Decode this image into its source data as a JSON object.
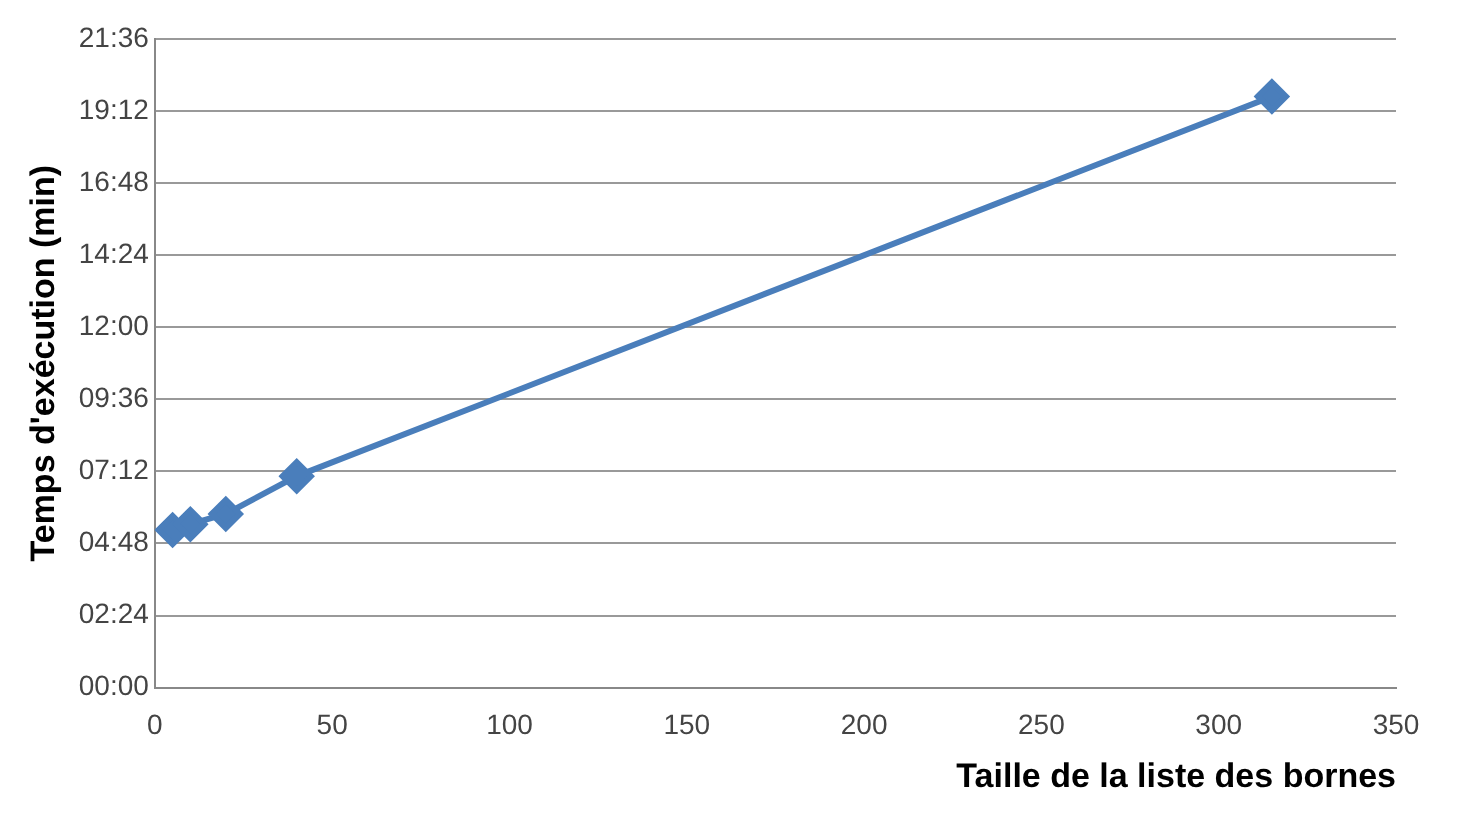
{
  "chart_data": {
    "type": "line",
    "xlabel": "Taille de la liste des bornes",
    "ylabel": "Temps d'exécution (min)",
    "x": [
      5,
      10,
      20,
      40,
      315
    ],
    "series": [
      {
        "color": "#4a7ebb",
        "values": [
          5.25,
          5.44,
          5.78,
          7.04,
          19.68
        ]
      }
    ],
    "xlim": [
      0,
      350
    ],
    "xticks": [
      0,
      50,
      100,
      150,
      200,
      250,
      300,
      350
    ],
    "ylim": [
      0,
      21.6
    ],
    "yticks": [
      {
        "value": 0,
        "label": "00:00"
      },
      {
        "value": 2.4,
        "label": "02:24"
      },
      {
        "value": 4.8,
        "label": "04:48"
      },
      {
        "value": 7.2,
        "label": "07:12"
      },
      {
        "value": 9.6,
        "label": "09:36"
      },
      {
        "value": 12,
        "label": "12:00"
      },
      {
        "value": 14.4,
        "label": "14:24"
      },
      {
        "value": 16.8,
        "label": "16:48"
      },
      {
        "value": 19.2,
        "label": "19:12"
      },
      {
        "value": 21.6,
        "label": "21:36"
      }
    ],
    "grid": "y",
    "marker": "diamond",
    "line_style": "solid"
  }
}
